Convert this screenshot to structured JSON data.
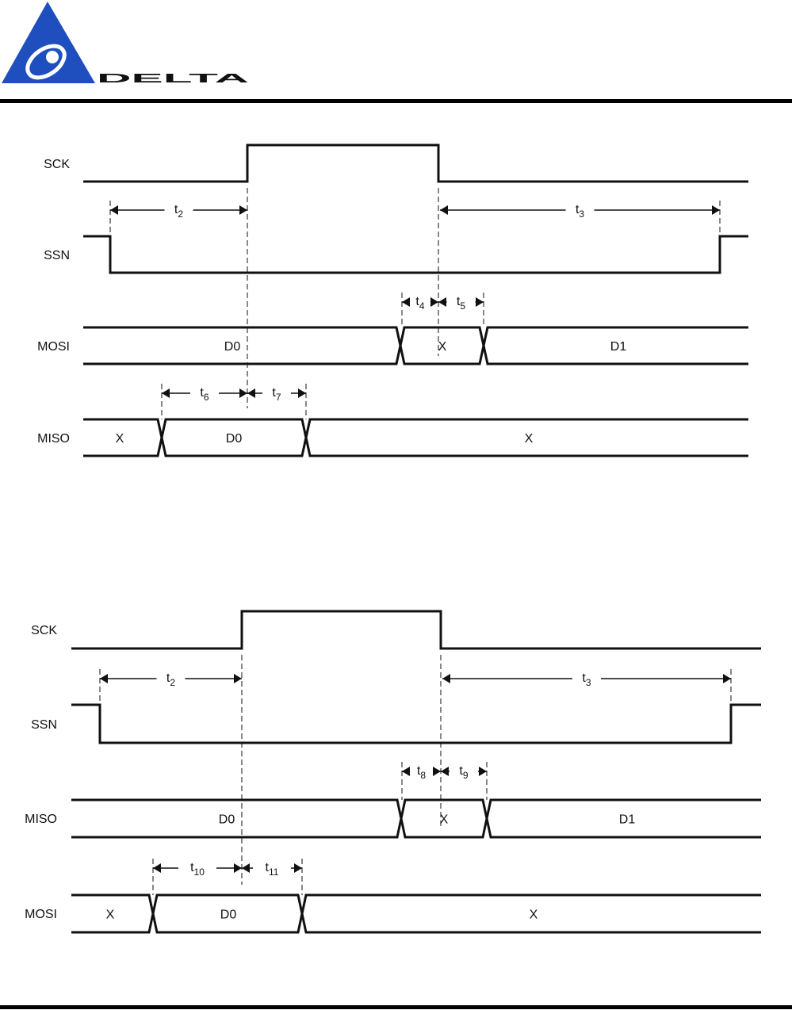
{
  "header": {
    "logo_text": "DELTA",
    "brand_color": "#1f4fbf"
  },
  "diagrams": [
    {
      "signals": {
        "sck": "SCK",
        "ssn": "SSN",
        "bus1": "MOSI",
        "bus2": "MISO"
      },
      "bus1_values": [
        "D0",
        "X",
        "D1"
      ],
      "bus2_values": [
        "X",
        "D0",
        "X"
      ],
      "timings": {
        "ta": {
          "base": "t",
          "sub": "2"
        },
        "tb": {
          "base": "t",
          "sub": "3"
        },
        "tc": {
          "base": "t",
          "sub": "4"
        },
        "td": {
          "base": "t",
          "sub": "5"
        },
        "te": {
          "base": "t",
          "sub": "6"
        },
        "tf": {
          "base": "t",
          "sub": "7"
        }
      }
    },
    {
      "signals": {
        "sck": "SCK",
        "ssn": "SSN",
        "bus1": "MISO",
        "bus2": "MOSI"
      },
      "bus1_values": [
        "D0",
        "X",
        "D1"
      ],
      "bus2_values": [
        "X",
        "D0",
        "X"
      ],
      "timings": {
        "ta": {
          "base": "t",
          "sub": "2"
        },
        "tb": {
          "base": "t",
          "sub": "3"
        },
        "tc": {
          "base": "t",
          "sub": "8"
        },
        "td": {
          "base": "t",
          "sub": "9"
        },
        "te": {
          "base": "t",
          "sub": "10"
        },
        "tf": {
          "base": "t",
          "sub": "11"
        }
      }
    }
  ]
}
